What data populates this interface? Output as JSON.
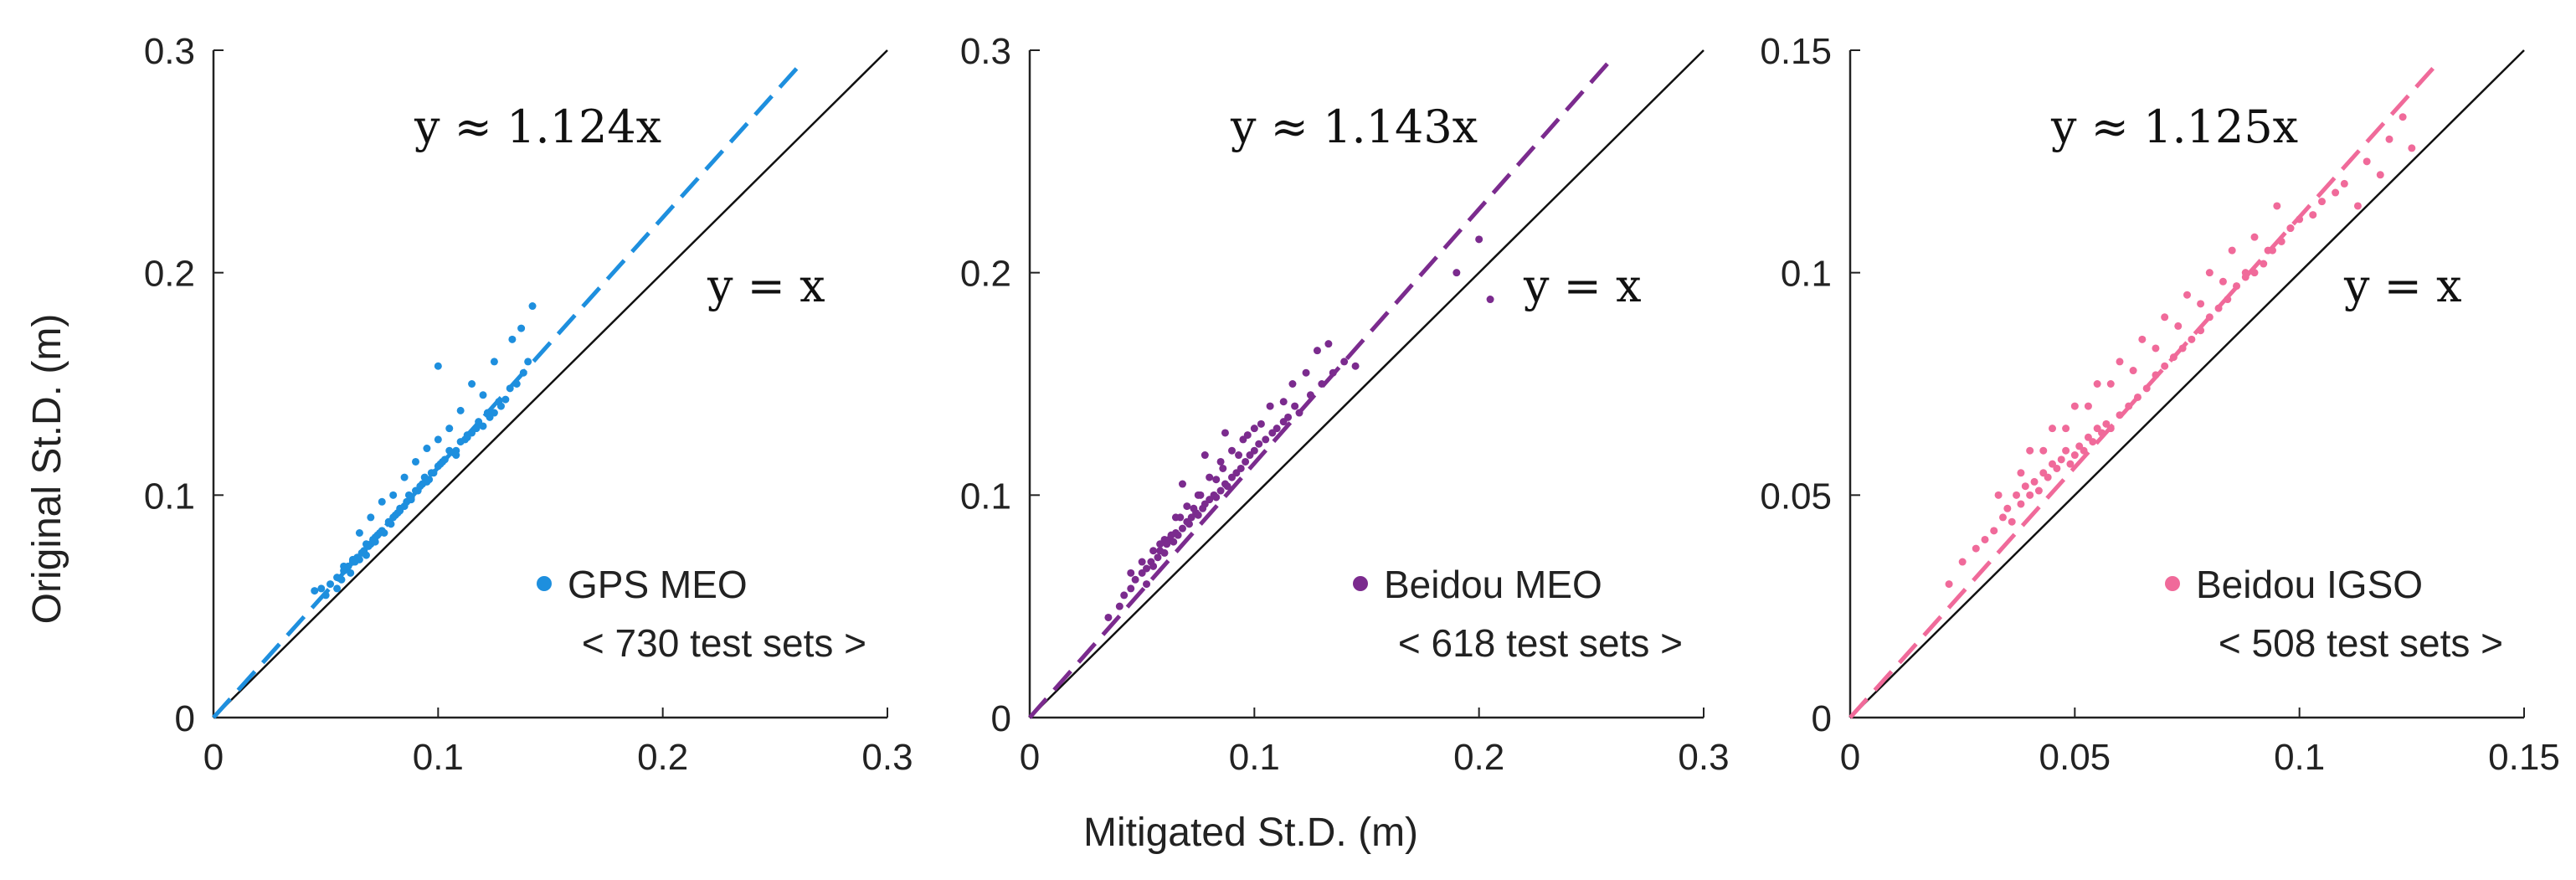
{
  "xlabel": "Mitigated St.D. (m)",
  "ylabel": "Original St.D. (m)",
  "chart_data": [
    {
      "type": "scatter",
      "series_name": "GPS MEO",
      "color": "#1e8fde",
      "legend": "GPS MEO",
      "count_label": "< 730 test sets >",
      "fit_label": "y ≈ 1.124x",
      "identity_label": "y = x",
      "slope": 1.124,
      "xlim": [
        0,
        0.3
      ],
      "ylim": [
        0,
        0.3
      ],
      "xticks": [
        0,
        0.1,
        0.2,
        0.3
      ],
      "yticks": [
        0,
        0.1,
        0.2,
        0.3
      ],
      "xtick_labels": [
        "0",
        "0.1",
        "0.2",
        "0.3"
      ],
      "ytick_labels": [
        "0",
        "0.1",
        "0.2",
        "0.3"
      ],
      "x": [
        0.045,
        0.048,
        0.05,
        0.052,
        0.055,
        0.057,
        0.058,
        0.06,
        0.061,
        0.062,
        0.064,
        0.065,
        0.066,
        0.067,
        0.068,
        0.07,
        0.071,
        0.072,
        0.073,
        0.075,
        0.076,
        0.078,
        0.079,
        0.08,
        0.082,
        0.083,
        0.085,
        0.087,
        0.088,
        0.09,
        0.092,
        0.094,
        0.095,
        0.097,
        0.1,
        0.102,
        0.105,
        0.108,
        0.11,
        0.113,
        0.115,
        0.118,
        0.12,
        0.123,
        0.125,
        0.128,
        0.13,
        0.135,
        0.14,
        0.105,
        0.095,
        0.085,
        0.075,
        0.065,
        0.09,
        0.1,
        0.11,
        0.12,
        0.07,
        0.08,
        0.058,
        0.062,
        0.068,
        0.072,
        0.078,
        0.083,
        0.088,
        0.093,
        0.098,
        0.103,
        0.108,
        0.113,
        0.118,
        0.055,
        0.063,
        0.069,
        0.074,
        0.081,
        0.086,
        0.091,
        0.096,
        0.101,
        0.107,
        0.112,
        0.117,
        0.122,
        0.127,
        0.132,
        0.138,
        0.142,
        0.125,
        0.133,
        0.1,
        0.137,
        0.115
      ],
      "y": [
        0.057,
        0.058,
        0.055,
        0.06,
        0.063,
        0.062,
        0.066,
        0.068,
        0.065,
        0.07,
        0.072,
        0.071,
        0.074,
        0.075,
        0.073,
        0.078,
        0.08,
        0.079,
        0.082,
        0.084,
        0.083,
        0.088,
        0.087,
        0.09,
        0.092,
        0.094,
        0.095,
        0.1,
        0.098,
        0.102,
        0.104,
        0.108,
        0.106,
        0.11,
        0.113,
        0.115,
        0.12,
        0.118,
        0.124,
        0.126,
        0.128,
        0.132,
        0.131,
        0.135,
        0.137,
        0.14,
        0.143,
        0.15,
        0.16,
        0.13,
        0.121,
        0.108,
        0.097,
        0.083,
        0.115,
        0.125,
        0.138,
        0.145,
        0.09,
        0.1,
        0.068,
        0.071,
        0.078,
        0.081,
        0.088,
        0.093,
        0.099,
        0.105,
        0.11,
        0.116,
        0.12,
        0.127,
        0.133,
        0.058,
        0.07,
        0.077,
        0.083,
        0.091,
        0.097,
        0.102,
        0.107,
        0.114,
        0.119,
        0.125,
        0.13,
        0.137,
        0.142,
        0.148,
        0.155,
        0.185,
        0.16,
        0.17,
        0.158,
        0.175,
        0.15
      ]
    },
    {
      "type": "scatter",
      "series_name": "Beidou MEO",
      "color": "#7b2b8e",
      "legend": "Beidou MEO",
      "count_label": "< 618 test sets >",
      "fit_label": "y ≈ 1.143x",
      "identity_label": "y = x",
      "slope": 1.143,
      "xlim": [
        0,
        0.3
      ],
      "ylim": [
        0,
        0.3
      ],
      "xticks": [
        0,
        0.1,
        0.2,
        0.3
      ],
      "yticks": [
        0,
        0.1,
        0.2,
        0.3
      ],
      "xtick_labels": [
        "0",
        "0.1",
        "0.2",
        "0.3"
      ],
      "ytick_labels": [
        "0",
        "0.1",
        "0.2",
        "0.3"
      ],
      "x": [
        0.035,
        0.04,
        0.042,
        0.045,
        0.047,
        0.05,
        0.052,
        0.054,
        0.055,
        0.057,
        0.058,
        0.06,
        0.061,
        0.062,
        0.064,
        0.065,
        0.066,
        0.068,
        0.07,
        0.071,
        0.072,
        0.074,
        0.075,
        0.077,
        0.078,
        0.08,
        0.082,
        0.083,
        0.085,
        0.087,
        0.088,
        0.09,
        0.092,
        0.094,
        0.096,
        0.098,
        0.1,
        0.102,
        0.105,
        0.108,
        0.11,
        0.113,
        0.115,
        0.118,
        0.12,
        0.125,
        0.13,
        0.135,
        0.14,
        0.145,
        0.2,
        0.205,
        0.19,
        0.045,
        0.055,
        0.065,
        0.075,
        0.085,
        0.095,
        0.06,
        0.07,
        0.08,
        0.09,
        0.1,
        0.05,
        0.058,
        0.067,
        0.076,
        0.086,
        0.097,
        0.107,
        0.117,
        0.128,
        0.052,
        0.063,
        0.073,
        0.083,
        0.093,
        0.103,
        0.113,
        0.123,
        0.133,
        0.087,
        0.078,
        0.068
      ],
      "y": [
        0.045,
        0.05,
        0.055,
        0.058,
        0.062,
        0.065,
        0.06,
        0.07,
        0.068,
        0.072,
        0.075,
        0.074,
        0.078,
        0.08,
        0.079,
        0.083,
        0.082,
        0.085,
        0.088,
        0.087,
        0.09,
        0.092,
        0.091,
        0.094,
        0.096,
        0.098,
        0.1,
        0.099,
        0.102,
        0.105,
        0.104,
        0.108,
        0.11,
        0.112,
        0.115,
        0.118,
        0.12,
        0.123,
        0.125,
        0.128,
        0.13,
        0.133,
        0.135,
        0.14,
        0.137,
        0.145,
        0.15,
        0.155,
        0.16,
        0.158,
        0.215,
        0.188,
        0.2,
        0.065,
        0.075,
        0.09,
        0.1,
        0.115,
        0.125,
        0.08,
        0.095,
        0.108,
        0.12,
        0.13,
        0.07,
        0.078,
        0.09,
        0.1,
        0.112,
        0.127,
        0.14,
        0.15,
        0.165,
        0.067,
        0.082,
        0.094,
        0.107,
        0.118,
        0.132,
        0.142,
        0.155,
        0.168,
        0.128,
        0.118,
        0.105
      ]
    },
    {
      "type": "scatter",
      "series_name": "Beidou IGSO",
      "color": "#f06a9a",
      "legend": "Beidou IGSO",
      "count_label": "< 508 test sets >",
      "fit_label": "y ≈ 1.125x",
      "identity_label": "y = x",
      "slope": 1.125,
      "xlim": [
        0,
        0.15
      ],
      "ylim": [
        0,
        0.15
      ],
      "xticks": [
        0,
        0.05,
        0.1,
        0.15
      ],
      "yticks": [
        0,
        0.05,
        0.1,
        0.15
      ],
      "xtick_labels": [
        "0",
        "0.05",
        "0.1",
        "0.15"
      ],
      "ytick_labels": [
        "0",
        "0.05",
        "0.1",
        "0.15"
      ],
      "x": [
        0.022,
        0.025,
        0.028,
        0.03,
        0.032,
        0.034,
        0.035,
        0.036,
        0.037,
        0.038,
        0.039,
        0.04,
        0.041,
        0.042,
        0.043,
        0.044,
        0.045,
        0.046,
        0.047,
        0.048,
        0.049,
        0.05,
        0.051,
        0.052,
        0.053,
        0.054,
        0.055,
        0.056,
        0.057,
        0.058,
        0.06,
        0.062,
        0.064,
        0.066,
        0.068,
        0.07,
        0.072,
        0.074,
        0.076,
        0.078,
        0.08,
        0.082,
        0.084,
        0.086,
        0.088,
        0.09,
        0.092,
        0.094,
        0.096,
        0.098,
        0.1,
        0.105,
        0.11,
        0.115,
        0.12,
        0.123,
        0.125,
        0.04,
        0.045,
        0.05,
        0.055,
        0.06,
        0.065,
        0.07,
        0.075,
        0.08,
        0.085,
        0.09,
        0.095,
        0.033,
        0.038,
        0.043,
        0.048,
        0.053,
        0.058,
        0.063,
        0.068,
        0.073,
        0.078,
        0.083,
        0.088,
        0.093,
        0.098,
        0.103,
        0.108,
        0.113,
        0.118
      ],
      "y": [
        0.03,
        0.035,
        0.038,
        0.04,
        0.042,
        0.045,
        0.047,
        0.044,
        0.05,
        0.048,
        0.052,
        0.05,
        0.053,
        0.051,
        0.055,
        0.054,
        0.057,
        0.056,
        0.058,
        0.06,
        0.057,
        0.059,
        0.061,
        0.06,
        0.063,
        0.062,
        0.065,
        0.064,
        0.066,
        0.065,
        0.068,
        0.07,
        0.072,
        0.074,
        0.077,
        0.079,
        0.081,
        0.083,
        0.085,
        0.087,
        0.09,
        0.092,
        0.094,
        0.097,
        0.099,
        0.1,
        0.102,
        0.105,
        0.107,
        0.11,
        0.112,
        0.116,
        0.12,
        0.125,
        0.13,
        0.135,
        0.128,
        0.06,
        0.065,
        0.07,
        0.075,
        0.08,
        0.085,
        0.09,
        0.095,
        0.1,
        0.105,
        0.108,
        0.115,
        0.05,
        0.055,
        0.06,
        0.065,
        0.07,
        0.075,
        0.078,
        0.083,
        0.088,
        0.093,
        0.098,
        0.1,
        0.105,
        0.11,
        0.113,
        0.118,
        0.115,
        0.122
      ]
    }
  ]
}
